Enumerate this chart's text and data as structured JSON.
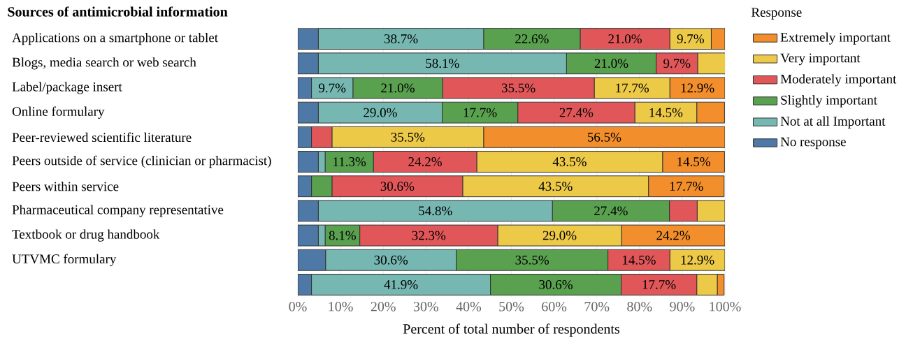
{
  "chart_data": {
    "type": "bar",
    "orientation": "horizontal",
    "stacked": true,
    "ylabel": "**Sources of antimicrobial information**",
    "xlabel": "Percent of total number of respondents",
    "legend_title": "Response",
    "legend": "top right",
    "grid": "x",
    "categories": [
      "Applications on a smartphone or tablet",
      "Blogs, media search or web search",
      "Label/package insert",
      "Online formulary",
      "Peer-reviewed scientific literature",
      "Peers outside of service (clinician or pharmacist)",
      "Peers within service",
      "Pharmaceutical company representative",
      "Textbook or drug handbook",
      "UTVMC formulary",
      null
    ],
    "xlim": [
      0,
      100
    ],
    "xticks": [
      {
        "value": 0,
        "label": "0%"
      },
      {
        "value": 10,
        "label": "10%"
      },
      {
        "value": 20,
        "label": "20%"
      },
      {
        "value": 30,
        "label": "30%"
      },
      {
        "value": 40,
        "label": "40%"
      },
      {
        "value": 50,
        "label": "50%"
      },
      {
        "value": 60,
        "label": "60%"
      },
      {
        "value": 70,
        "label": "70%"
      },
      {
        "value": 80,
        "label": "80%"
      },
      {
        "value": 90,
        "label": "90%"
      },
      {
        "value": 100,
        "label": "100%"
      }
    ],
    "series": [
      {
        "name": "No response",
        "color": "#4e79a7",
        "values": [
          4.8,
          4.8,
          3.2,
          4.8,
          3.2,
          4.8,
          3.2,
          4.8,
          4.8,
          6.5,
          3.2
        ],
        "value_labels": [
          null,
          null,
          null,
          null,
          null,
          null,
          null,
          null,
          null,
          null,
          null
        ]
      },
      {
        "name": "Not at all  Important",
        "color": "#76b7b2",
        "values": [
          38.7,
          58.1,
          9.7,
          29.0,
          0,
          1.6,
          0,
          54.8,
          1.6,
          30.6,
          41.9
        ],
        "value_labels": [
          "38.7%",
          "58.1%",
          "9.7%",
          "29.0%",
          null,
          null,
          null,
          "54.8%",
          null,
          "30.6%",
          "41.9%"
        ]
      },
      {
        "name": "Slightly important",
        "color": "#59a14f",
        "values": [
          22.6,
          21.0,
          21.0,
          17.7,
          0,
          11.3,
          4.8,
          27.4,
          8.1,
          35.5,
          30.6
        ],
        "value_labels": [
          "22.6%",
          "21.0%",
          "21.0%",
          "17.7%",
          null,
          "11.3%",
          null,
          "27.4%",
          "8.1%",
          "35.5%",
          "30.6%"
        ]
      },
      {
        "name": "Moderately important",
        "color": "#e15759",
        "values": [
          21.0,
          9.7,
          35.5,
          27.4,
          4.8,
          24.2,
          30.6,
          6.5,
          32.3,
          14.5,
          17.7
        ],
        "value_labels": [
          "21.0%",
          "9.7%",
          "35.5%",
          "27.4%",
          null,
          "24.2%",
          "30.6%",
          null,
          "32.3%",
          "14.5%",
          "17.7%"
        ]
      },
      {
        "name": "Very important",
        "color": "#edc948",
        "values": [
          9.7,
          6.5,
          17.7,
          14.5,
          35.5,
          43.5,
          43.5,
          6.5,
          29.0,
          12.9,
          4.8
        ],
        "value_labels": [
          "9.7%",
          null,
          "17.7%",
          "14.5%",
          "35.5%",
          "43.5%",
          "43.5%",
          null,
          "29.0%",
          "12.9%",
          null
        ]
      },
      {
        "name": "Extremely important",
        "color": "#f28e2b",
        "values": [
          3.2,
          0,
          12.9,
          6.5,
          56.5,
          14.5,
          17.7,
          0,
          24.2,
          0,
          1.6
        ],
        "value_labels": [
          null,
          null,
          "12.9%",
          null,
          "56.5%",
          "14.5%",
          "17.7%",
          null,
          "24.2%",
          null,
          null
        ]
      }
    ]
  }
}
